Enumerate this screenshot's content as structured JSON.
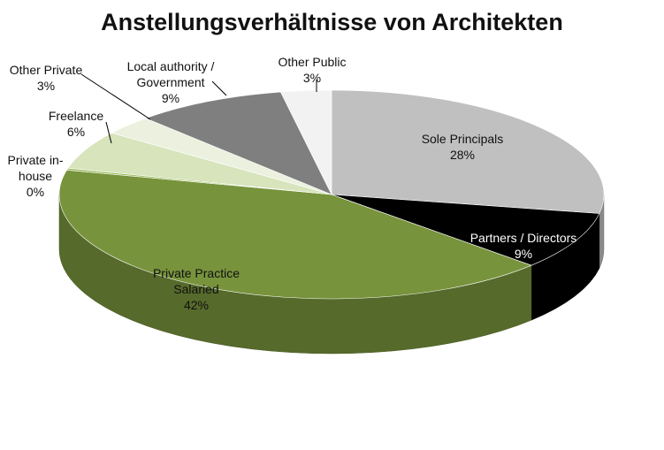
{
  "chart_data": {
    "type": "pie",
    "title": "Anstellungsverhältnisse von Architekten",
    "slices": [
      {
        "label": "Sole Principals",
        "percent_label": "28%",
        "value": 28,
        "color": "#c0c0c0"
      },
      {
        "label": "Partners / Directors",
        "percent_label": "9%",
        "value": 9,
        "color": "#000000"
      },
      {
        "label": "Private Practice Salaried",
        "percent_label": "42%",
        "value": 42,
        "color": "#77933c"
      },
      {
        "label": "Private in-house",
        "percent_label": "0%",
        "value": 0.3,
        "color": "#9bbb59"
      },
      {
        "label": "Freelance",
        "percent_label": "6%",
        "value": 6,
        "color": "#d7e4bc"
      },
      {
        "label": "Other Private",
        "percent_label": "3%",
        "value": 3,
        "color": "#ebf1de"
      },
      {
        "label": "Local authority / Government",
        "percent_label": "9%",
        "value": 9,
        "color": "#7f7f7f"
      },
      {
        "label": "Other Public",
        "percent_label": "3%",
        "value": 3,
        "color": "#f2f2f2"
      }
    ],
    "start_angle_deg": -90,
    "direction": "clockwise",
    "style": "3d-pie"
  }
}
